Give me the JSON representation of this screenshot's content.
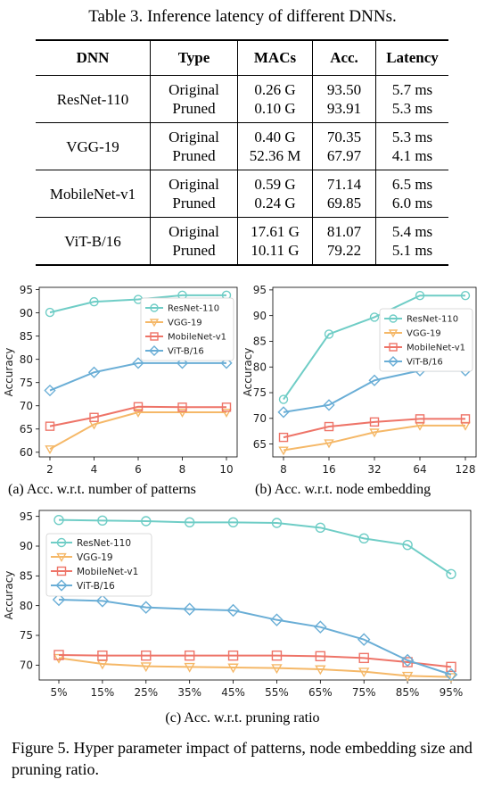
{
  "table": {
    "title": "Table 3. Inference latency of different DNNs.",
    "headers": [
      "DNN",
      "Type",
      "MACs",
      "Acc.",
      "Latency"
    ],
    "rows": [
      {
        "dnn": "ResNet-110",
        "types": [
          "Original",
          "Pruned"
        ],
        "macs": [
          "0.26 G",
          "0.10 G"
        ],
        "acc": [
          "93.50",
          "93.91"
        ],
        "latency": [
          "5.7 ms",
          "5.3 ms"
        ]
      },
      {
        "dnn": "VGG-19",
        "types": [
          "Original",
          "Pruned"
        ],
        "macs": [
          "0.40 G",
          "52.36 M"
        ],
        "acc": [
          "70.35",
          "67.97"
        ],
        "latency": [
          "5.3 ms",
          "4.1 ms"
        ]
      },
      {
        "dnn": "MobileNet-v1",
        "types": [
          "Original",
          "Pruned"
        ],
        "macs": [
          "0.59 G",
          "0.24 G"
        ],
        "acc": [
          "71.14",
          "69.85"
        ],
        "latency": [
          "6.5 ms",
          "6.0 ms"
        ]
      },
      {
        "dnn": "ViT-B/16",
        "types": [
          "Original",
          "Pruned"
        ],
        "macs": [
          "17.61 G",
          "10.11 G"
        ],
        "acc": [
          "81.07",
          "79.22"
        ],
        "latency": [
          "5.4 ms",
          "5.1 ms"
        ]
      }
    ]
  },
  "series_styles": {
    "ResNet-110": {
      "color": "#6fcdc6",
      "marker": "circle"
    },
    "VGG-19": {
      "color": "#f5b868",
      "marker": "triangle-down"
    },
    "MobileNet-v1": {
      "color": "#ee7468",
      "marker": "square"
    },
    "ViT-B/16": {
      "color": "#6aaed6",
      "marker": "diamond"
    }
  },
  "captions": {
    "a": "(a) Acc. w.r.t. number of patterns",
    "b": "(b) Acc. w.r.t. node embedding",
    "c": "(c) Acc. w.r.t. pruning ratio",
    "figure": "Figure 5.  Hyper parameter impact of patterns, node embedding size and pruning ratio."
  },
  "chart_data": [
    {
      "id": "a",
      "type": "line",
      "x": [
        "2",
        "4",
        "6",
        "8",
        "10"
      ],
      "ylabel": "Accuracy",
      "xlabel": "",
      "ylim": [
        59,
        95.5
      ],
      "yticks": [
        60,
        65,
        70,
        75,
        80,
        85,
        90,
        95
      ],
      "grid": false,
      "legend": "right",
      "series": [
        {
          "name": "ResNet-110",
          "values": [
            90.1,
            92.4,
            92.9,
            93.8,
            93.8
          ]
        },
        {
          "name": "VGG-19",
          "values": [
            60.7,
            66.0,
            68.6,
            68.6,
            68.6
          ]
        },
        {
          "name": "MobileNet-v1",
          "values": [
            65.6,
            67.5,
            69.8,
            69.7,
            69.7
          ]
        },
        {
          "name": "ViT-B/16",
          "values": [
            73.3,
            77.2,
            79.2,
            79.2,
            79.2
          ]
        }
      ]
    },
    {
      "id": "b",
      "type": "line",
      "x": [
        "8",
        "16",
        "32",
        "64",
        "128"
      ],
      "ylabel": "Accuracy",
      "xlabel": "",
      "ylim": [
        62.5,
        95.5
      ],
      "yticks": [
        65,
        70,
        75,
        80,
        85,
        90,
        95
      ],
      "grid": false,
      "legend": "right",
      "series": [
        {
          "name": "ResNet-110",
          "values": [
            73.7,
            86.4,
            89.7,
            93.9,
            93.9
          ]
        },
        {
          "name": "VGG-19",
          "values": [
            63.8,
            65.2,
            67.3,
            68.6,
            68.6
          ]
        },
        {
          "name": "MobileNet-v1",
          "values": [
            66.3,
            68.4,
            69.3,
            69.9,
            69.9
          ]
        },
        {
          "name": "ViT-B/16",
          "values": [
            71.2,
            72.6,
            77.4,
            79.3,
            79.3
          ]
        }
      ]
    },
    {
      "id": "c",
      "type": "line",
      "x": [
        "5%",
        "15%",
        "25%",
        "35%",
        "45%",
        "55%",
        "65%",
        "75%",
        "85%",
        "95%"
      ],
      "ylabel": "Accuracy",
      "xlabel": "",
      "ylim": [
        67.5,
        96
      ],
      "yticks": [
        70,
        75,
        80,
        85,
        90,
        95
      ],
      "grid": false,
      "legend": "top-left",
      "series": [
        {
          "name": "ResNet-110",
          "values": [
            94.4,
            94.3,
            94.2,
            94.0,
            94.0,
            93.9,
            93.1,
            91.3,
            90.2,
            85.3
          ]
        },
        {
          "name": "VGG-19",
          "values": [
            71.2,
            70.2,
            69.8,
            69.7,
            69.6,
            69.5,
            69.3,
            68.9,
            68.2,
            68.0
          ]
        },
        {
          "name": "MobileNet-v1",
          "values": [
            71.7,
            71.6,
            71.6,
            71.6,
            71.6,
            71.6,
            71.5,
            71.2,
            70.5,
            69.7
          ]
        },
        {
          "name": "ViT-B/16",
          "values": [
            81.0,
            80.8,
            79.7,
            79.4,
            79.2,
            77.6,
            76.4,
            74.3,
            70.8,
            68.4
          ]
        }
      ]
    }
  ]
}
